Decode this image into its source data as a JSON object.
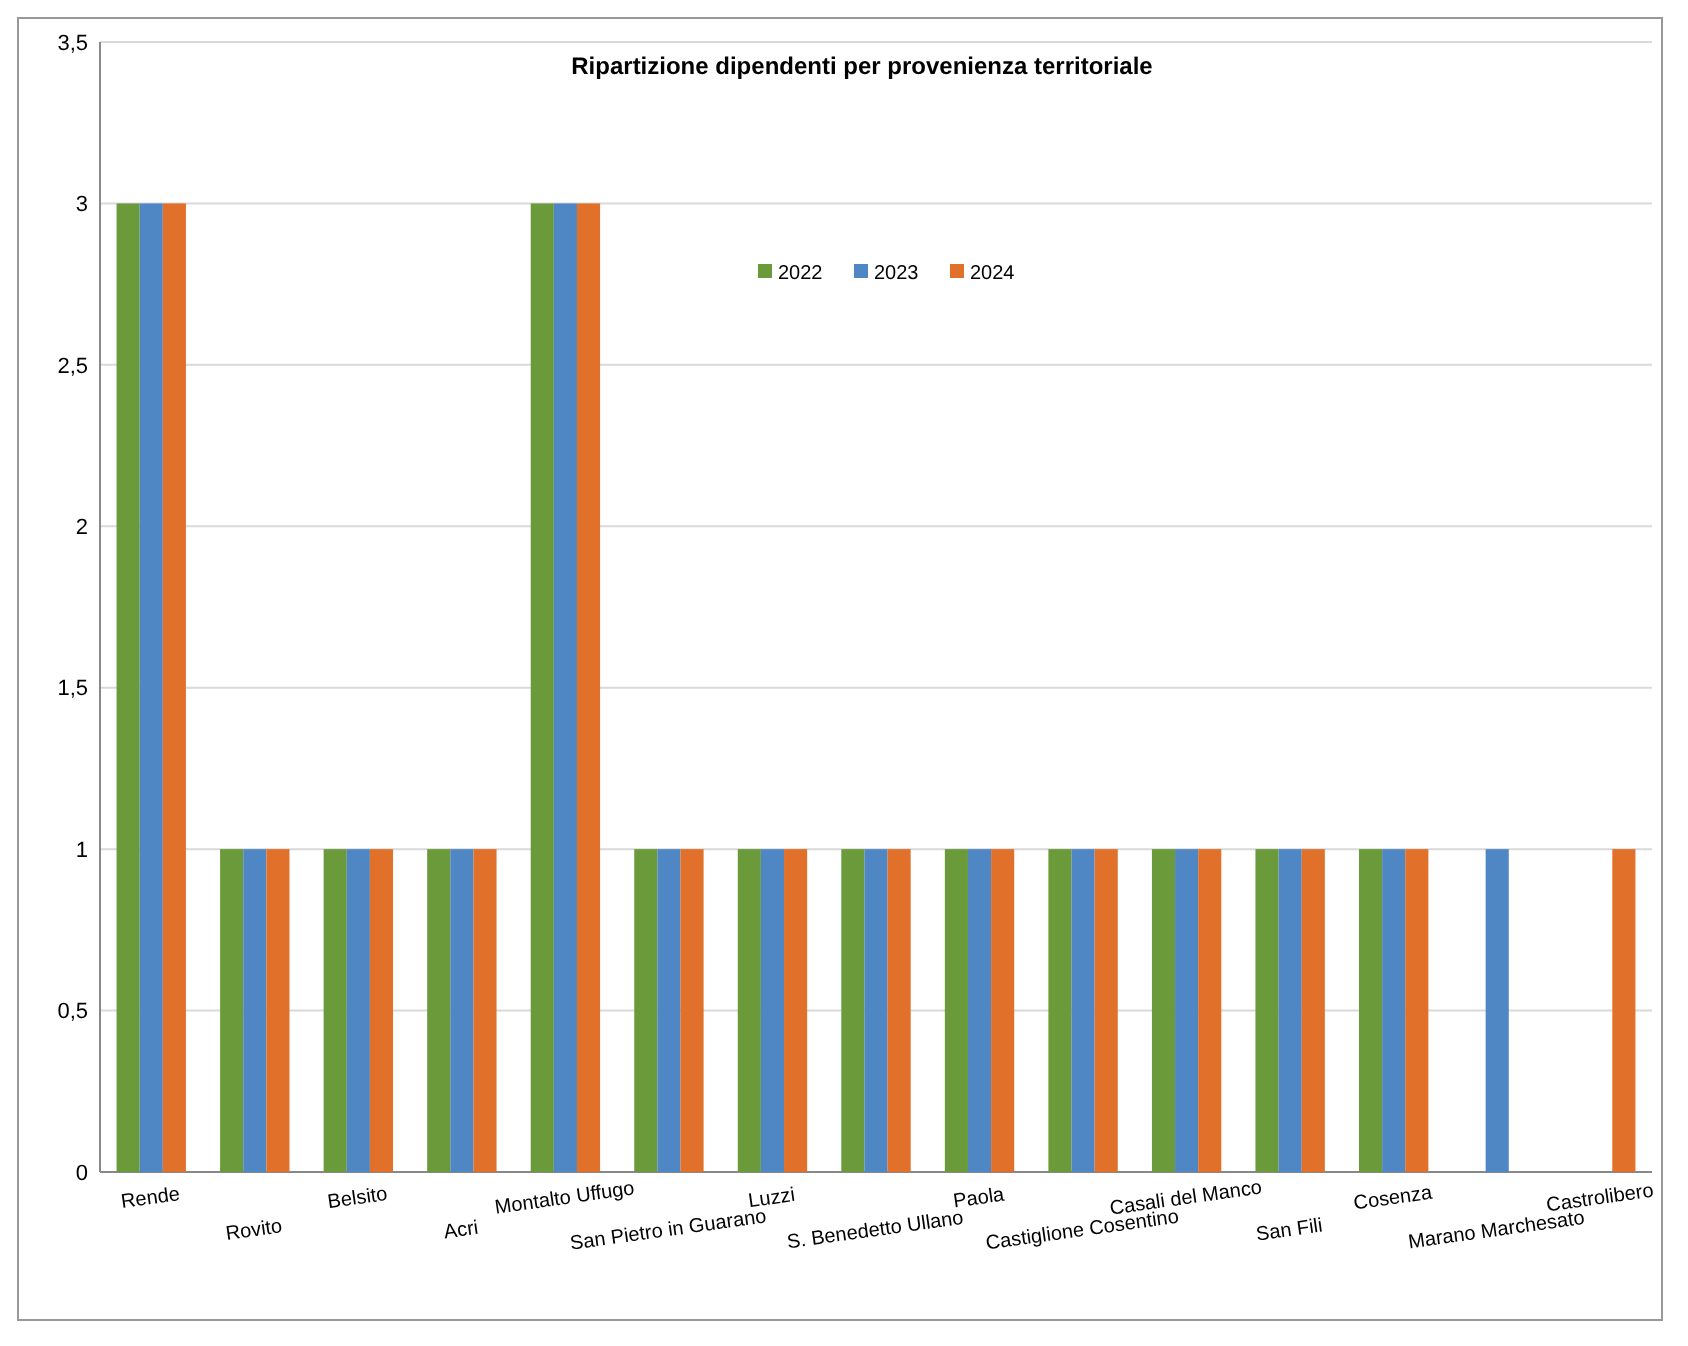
{
  "chart_data": {
    "type": "bar",
    "title": "Ripartizione dipendenti per provenienza territoriale",
    "categories": [
      "Rende",
      "Rovito",
      "Belsito",
      "Acri",
      "Montalto Uffugo",
      "San Pietro in Guarano",
      "Luzzi",
      "S. Benedetto Ullano",
      "Paola",
      "Castiglione Cosentino",
      "Casali del Manco",
      "San Fili",
      "Cosenza",
      "Marano Marchesato",
      "Castrolibero"
    ],
    "series": [
      {
        "name": "2022",
        "color": "#6b9a3b",
        "values": [
          3,
          1,
          1,
          1,
          3,
          1,
          1,
          1,
          1,
          1,
          1,
          1,
          1,
          null,
          null
        ]
      },
      {
        "name": "2023",
        "color": "#4f86c4",
        "values": [
          3,
          1,
          1,
          1,
          3,
          1,
          1,
          1,
          1,
          1,
          1,
          1,
          1,
          1,
          null
        ]
      },
      {
        "name": "2024",
        "color": "#e0702a",
        "values": [
          3,
          1,
          1,
          1,
          3,
          1,
          1,
          1,
          1,
          1,
          1,
          1,
          1,
          null,
          1
        ]
      }
    ],
    "ylim": [
      0,
      3.5
    ],
    "yticks": [
      0,
      {
        "value": 0.5,
        "label": "0,5"
      },
      1,
      {
        "value": 1.5,
        "label": "1,5"
      },
      2,
      {
        "value": 2.5,
        "label": "2,5"
      },
      3,
      {
        "value": 3.5,
        "label": "3,5"
      }
    ],
    "grid": "y",
    "legend": "top"
  }
}
